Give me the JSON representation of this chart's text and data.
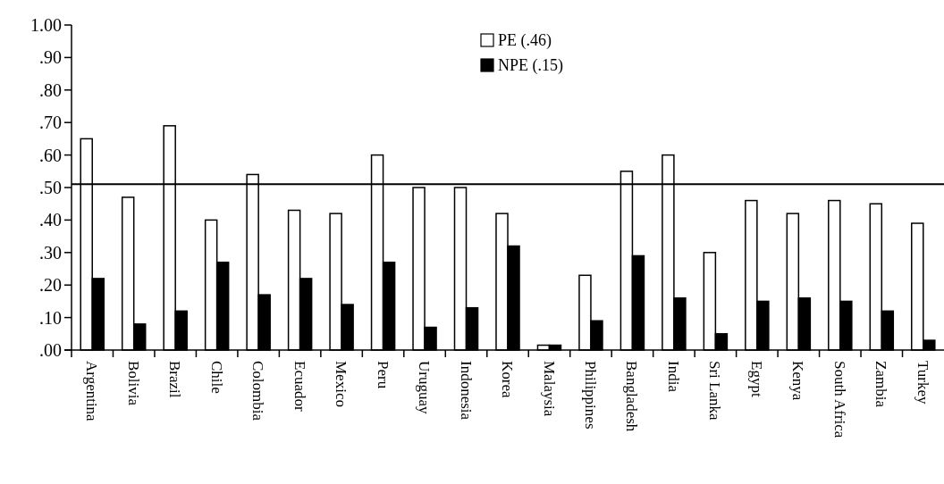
{
  "chart_data": {
    "type": "bar",
    "categories": [
      "Argentina",
      "Bolivia",
      "Brazil",
      "Chile",
      "Colombia",
      "Ecuador",
      "Mexico",
      "Peru",
      "Uruguay",
      "Indonesia",
      "Korea",
      "Malaysia",
      "Philippines",
      "Bangladesh",
      "India",
      "Sri Lanka",
      "Egypt",
      "Kenya",
      "South Africa",
      "Zambia",
      "Turkey"
    ],
    "series": [
      {
        "name": "PE (.46)",
        "color": "#ffffff",
        "values": [
          0.65,
          0.47,
          0.69,
          0.4,
          0.54,
          0.43,
          0.42,
          0.6,
          0.5,
          0.5,
          0.42,
          0.015,
          0.23,
          0.55,
          0.6,
          0.3,
          0.46,
          0.42,
          0.46,
          0.45,
          0.39
        ]
      },
      {
        "name": "NPE (.15)",
        "color": "#000000",
        "values": [
          0.22,
          0.08,
          0.12,
          0.27,
          0.17,
          0.22,
          0.14,
          0.27,
          0.07,
          0.13,
          0.32,
          0.015,
          0.09,
          0.29,
          0.16,
          0.05,
          0.15,
          0.16,
          0.15,
          0.12,
          0.03
        ]
      }
    ],
    "ylim": [
      0,
      1
    ],
    "yticks": [
      {
        "value": 0,
        "label": ".00"
      },
      {
        "value": 0.1,
        "label": ".10"
      },
      {
        "value": 0.2,
        "label": ".20"
      },
      {
        "value": 0.3,
        "label": ".30"
      },
      {
        "value": 0.4,
        "label": ".40"
      },
      {
        "value": 0.5,
        "label": ".50"
      },
      {
        "value": 0.6,
        "label": ".60"
      },
      {
        "value": 0.7,
        "label": ".70"
      },
      {
        "value": 0.8,
        "label": ".80"
      },
      {
        "value": 0.9,
        "label": ".90"
      },
      {
        "value": 1,
        "label": "1.00"
      }
    ],
    "ref_lines": [
      {
        "axis": "y",
        "value": 0.51,
        "color": "#000000"
      }
    ],
    "legend": "top right",
    "grid": false
  }
}
